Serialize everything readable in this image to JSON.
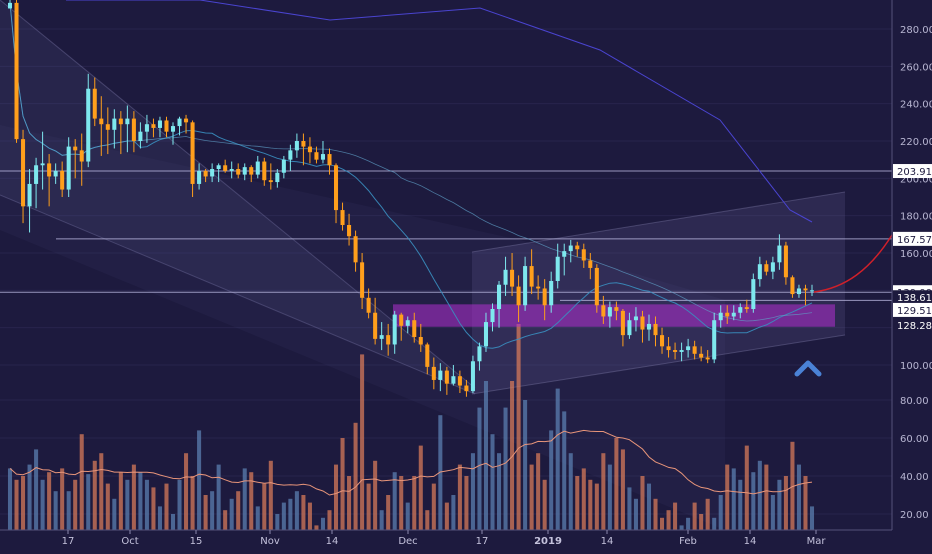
{
  "chart_data": {
    "type": "candlestick",
    "title": "",
    "xlabel": "",
    "ylabel": "",
    "ylim": [
      5,
      298
    ],
    "x_ticks": [
      "17",
      "Oct",
      "15",
      "Nov",
      "14",
      "Dec",
      "17",
      "2019",
      "14",
      "Feb",
      "14",
      "Mar"
    ],
    "y_ticks": [
      "280.00",
      "260.00",
      "240.00",
      "220.00",
      "200.00",
      "180.00",
      "160.00",
      "140.00",
      "120.00",
      "100.00",
      "80.00",
      "60.00",
      "40.00",
      "20.00"
    ],
    "price_tags": [
      {
        "label": "203.91",
        "value": 203.91,
        "color": "#ffffff",
        "text_color": "#1d1a3e"
      },
      {
        "label": "167.57",
        "value": 167.57,
        "color": "#ffffff",
        "text_color": "#1d1a3e"
      },
      {
        "label": "139.00",
        "value": 139.0,
        "color": "#ffffff",
        "text_color": "#1d1a3e"
      },
      {
        "label": "138.61",
        "value": 136.3,
        "color": "#1d1a3e",
        "text_color": "#ffffff"
      },
      {
        "label": "129.51",
        "value": 129.51,
        "color": "#ffffff",
        "text_color": "#1d1a3e"
      },
      {
        "label": "128.28",
        "value": 121.5,
        "color": "#1d1a3e",
        "text_color": "#ffffff"
      }
    ],
    "horizontal_levels": [
      203.91,
      167.57,
      139.0,
      134.6
    ],
    "support_zone": {
      "from": 120.5,
      "to": 132.5,
      "color": "#b030d0"
    },
    "colors": {
      "background": "#1d1a3e",
      "up": "#7ee8ee",
      "down": "#ff9f1c",
      "vol_up": "#5b7fb0",
      "vol_down": "#d67a5a",
      "ma_fast": "#3a8fc0",
      "ma_slow": "#4a44d0",
      "projection": "#d0202a",
      "arrow": "#4a82d6"
    },
    "candles": [
      [
        291,
        299,
        291,
        294
      ],
      [
        294,
        296,
        219,
        221
      ],
      [
        221,
        226,
        176,
        185
      ],
      [
        185,
        205,
        171,
        197
      ],
      [
        197,
        211,
        184,
        207
      ],
      [
        207,
        225,
        194,
        208
      ],
      [
        208,
        213,
        185,
        201
      ],
      [
        201,
        208,
        197,
        204
      ],
      [
        204,
        209,
        190,
        194
      ],
      [
        194,
        222,
        190,
        217
      ],
      [
        217,
        221,
        200,
        215
      ],
      [
        215,
        224,
        196,
        209
      ],
      [
        209,
        256,
        206,
        248
      ],
      [
        248,
        254,
        228,
        232
      ],
      [
        232,
        244,
        212,
        229
      ],
      [
        229,
        238,
        213,
        226
      ],
      [
        226,
        237,
        216,
        232
      ],
      [
        232,
        236,
        213,
        229
      ],
      [
        229,
        239,
        214,
        232
      ],
      [
        232,
        236,
        214,
        220
      ],
      [
        220,
        230,
        216,
        225
      ],
      [
        225,
        234,
        219,
        229
      ],
      [
        229,
        232,
        222,
        227
      ],
      [
        227,
        233,
        222,
        231
      ],
      [
        231,
        233,
        222,
        225
      ],
      [
        225,
        230,
        218,
        228
      ],
      [
        228,
        233,
        223,
        232
      ],
      [
        232,
        234,
        224,
        230
      ],
      [
        230,
        231,
        190,
        197
      ],
      [
        197,
        208,
        194,
        204
      ],
      [
        204,
        205,
        198,
        201
      ],
      [
        201,
        208,
        198,
        205
      ],
      [
        205,
        208,
        198,
        207
      ],
      [
        207,
        210,
        203,
        204
      ],
      [
        204,
        209,
        200,
        205
      ],
      [
        205,
        208,
        200,
        202
      ],
      [
        202,
        208,
        199,
        206
      ],
      [
        206,
        207,
        198,
        202
      ],
      [
        202,
        212,
        200,
        209
      ],
      [
        209,
        211,
        196,
        199
      ],
      [
        199,
        208,
        194,
        198
      ],
      [
        198,
        205,
        195,
        203
      ],
      [
        203,
        212,
        200,
        210
      ],
      [
        210,
        218,
        204,
        215
      ],
      [
        215,
        224,
        211,
        220
      ],
      [
        220,
        224,
        207,
        217
      ],
      [
        217,
        222,
        208,
        214
      ],
      [
        214,
        217,
        208,
        210
      ],
      [
        210,
        220,
        208,
        213
      ],
      [
        213,
        216,
        202,
        207
      ],
      [
        207,
        208,
        176,
        183
      ],
      [
        183,
        187,
        172,
        175
      ],
      [
        175,
        181,
        164,
        169
      ],
      [
        169,
        172,
        150,
        155
      ],
      [
        155,
        160,
        130,
        136
      ],
      [
        136,
        141,
        125,
        128
      ],
      [
        128,
        136,
        111,
        114
      ],
      [
        114,
        123,
        108,
        116
      ],
      [
        116,
        122,
        105,
        111
      ],
      [
        111,
        129,
        106,
        127
      ],
      [
        127,
        128,
        113,
        121
      ],
      [
        121,
        126,
        117,
        124
      ],
      [
        124,
        128,
        112,
        115
      ],
      [
        115,
        122,
        107,
        111
      ],
      [
        111,
        112,
        95,
        99
      ],
      [
        99,
        104,
        87,
        92
      ],
      [
        92,
        101,
        86,
        97
      ],
      [
        97,
        99,
        84,
        90
      ],
      [
        90,
        100,
        89,
        94
      ],
      [
        94,
        97,
        85,
        89
      ],
      [
        89,
        92,
        83,
        86
      ],
      [
        86,
        105,
        85,
        102
      ],
      [
        102,
        112,
        97,
        110
      ],
      [
        110,
        128,
        107,
        123
      ],
      [
        123,
        133,
        118,
        130
      ],
      [
        130,
        145,
        120,
        143
      ],
      [
        143,
        158,
        137,
        151
      ],
      [
        151,
        160,
        137,
        142
      ],
      [
        142,
        148,
        123,
        132
      ],
      [
        132,
        158,
        129,
        153
      ],
      [
        153,
        162,
        138,
        142
      ],
      [
        142,
        148,
        135,
        141
      ],
      [
        141,
        146,
        124,
        132
      ],
      [
        132,
        150,
        128,
        145
      ],
      [
        145,
        165,
        141,
        158
      ],
      [
        158,
        165,
        148,
        161
      ],
      [
        161,
        167,
        155,
        164
      ],
      [
        164,
        166,
        158,
        162
      ],
      [
        162,
        165,
        152,
        156
      ],
      [
        156,
        160,
        146,
        152
      ],
      [
        152,
        154,
        128,
        132
      ],
      [
        132,
        137,
        122,
        126
      ],
      [
        126,
        134,
        120,
        131
      ],
      [
        131,
        134,
        124,
        129
      ],
      [
        129,
        130,
        110,
        116
      ],
      [
        116,
        128,
        114,
        124
      ],
      [
        124,
        131,
        118,
        126
      ],
      [
        126,
        129,
        112,
        119
      ],
      [
        119,
        127,
        113,
        122
      ],
      [
        122,
        126,
        110,
        116
      ],
      [
        116,
        120,
        106,
        110
      ],
      [
        110,
        115,
        104,
        108
      ],
      [
        108,
        112,
        103,
        107
      ],
      [
        107,
        112,
        102,
        108
      ],
      [
        108,
        114,
        104,
        110
      ],
      [
        110,
        113,
        103,
        106
      ],
      [
        106,
        110,
        102,
        104
      ],
      [
        104,
        108,
        101,
        103
      ],
      [
        103,
        128,
        101,
        124
      ],
      [
        124,
        132,
        120,
        128
      ],
      [
        128,
        132,
        122,
        126
      ],
      [
        126,
        132,
        124,
        128
      ],
      [
        128,
        133,
        125,
        131
      ],
      [
        131,
        135,
        128,
        130
      ],
      [
        130,
        149,
        128,
        146
      ],
      [
        146,
        158,
        142,
        154
      ],
      [
        154,
        156,
        148,
        150
      ],
      [
        150,
        158,
        146,
        155
      ],
      [
        155,
        170,
        151,
        164
      ],
      [
        164,
        166,
        143,
        147
      ],
      [
        147,
        148,
        136,
        138
      ],
      [
        138,
        143,
        136,
        141
      ],
      [
        141,
        143,
        132,
        140
      ],
      [
        140,
        143,
        137,
        140
      ]
    ],
    "volume": [
      44,
      38,
      40,
      46,
      54,
      38,
      42,
      32,
      44,
      32,
      38,
      62,
      41,
      48,
      52,
      36,
      28,
      42,
      38,
      46,
      42,
      38,
      34,
      24,
      36,
      20,
      38,
      52,
      40,
      64,
      30,
      32,
      46,
      22,
      28,
      32,
      44,
      42,
      24,
      36,
      48,
      20,
      26,
      28,
      32,
      30,
      26,
      14,
      18,
      22,
      46,
      60,
      40,
      68,
      104,
      36,
      48,
      22,
      30,
      42,
      40,
      26,
      40,
      56,
      22,
      36,
      72,
      26,
      30,
      46,
      40,
      52,
      76,
      90,
      62,
      52,
      76,
      90,
      120,
      80,
      46,
      52,
      38,
      64,
      86,
      74,
      52,
      40,
      44,
      38,
      36,
      52,
      46,
      60,
      54,
      34,
      28,
      40,
      36,
      28,
      18,
      22,
      26,
      14,
      18,
      26,
      20,
      28,
      18,
      30,
      46,
      44,
      38,
      56,
      42,
      48,
      46,
      30,
      38,
      40,
      58,
      46,
      40,
      24
    ]
  }
}
